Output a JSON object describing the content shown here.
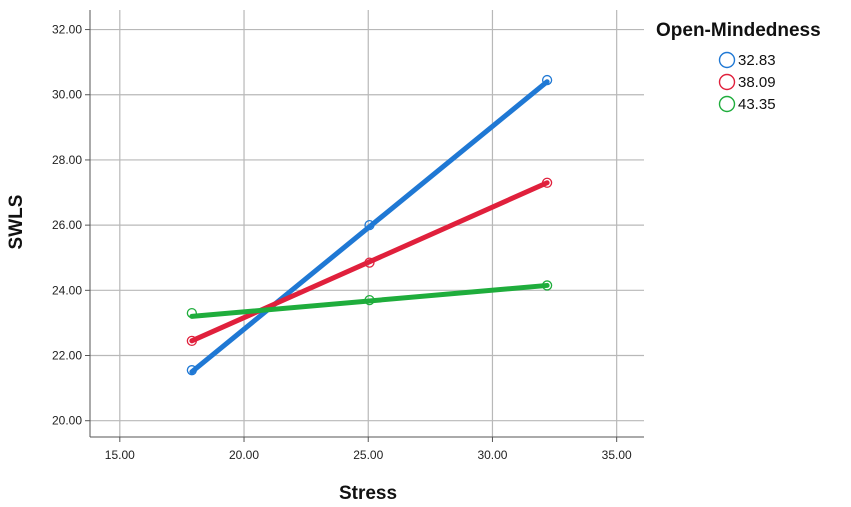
{
  "chart_data": {
    "type": "scatter",
    "xlabel": "Stress",
    "ylabel": "SWLS",
    "xlim": [
      13.8,
      36.1
    ],
    "ylim": [
      19.5,
      32.6
    ],
    "xticks": [
      "15.00",
      "20.00",
      "25.00",
      "30.00",
      "35.00"
    ],
    "yticks": [
      "20.00",
      "22.00",
      "24.00",
      "26.00",
      "28.00",
      "30.00",
      "32.00"
    ],
    "xtick_values": [
      15,
      20,
      25,
      30,
      35
    ],
    "ytick_values": [
      20,
      22,
      24,
      26,
      28,
      30,
      32
    ],
    "grid": true,
    "legend_title": "Open-Mindedness",
    "legend_position": "right",
    "series": [
      {
        "name": "32.83",
        "color": "#1f78d4",
        "points": [
          [
            17.9,
            21.55
          ],
          [
            25.05,
            26.0
          ],
          [
            32.2,
            30.45
          ]
        ],
        "fit": [
          [
            17.9,
            21.5
          ],
          [
            32.2,
            30.4
          ]
        ]
      },
      {
        "name": "38.09",
        "color": "#e0203c",
        "points": [
          [
            17.9,
            22.45
          ],
          [
            25.05,
            24.85
          ],
          [
            32.2,
            27.3
          ]
        ],
        "fit": [
          [
            17.9,
            22.45
          ],
          [
            32.2,
            27.3
          ]
        ]
      },
      {
        "name": "43.35",
        "color": "#1fad3c",
        "points": [
          [
            17.9,
            23.3
          ],
          [
            25.05,
            23.7
          ],
          [
            32.2,
            24.15
          ]
        ],
        "fit": [
          [
            17.9,
            23.2
          ],
          [
            32.2,
            24.15
          ]
        ]
      }
    ]
  }
}
